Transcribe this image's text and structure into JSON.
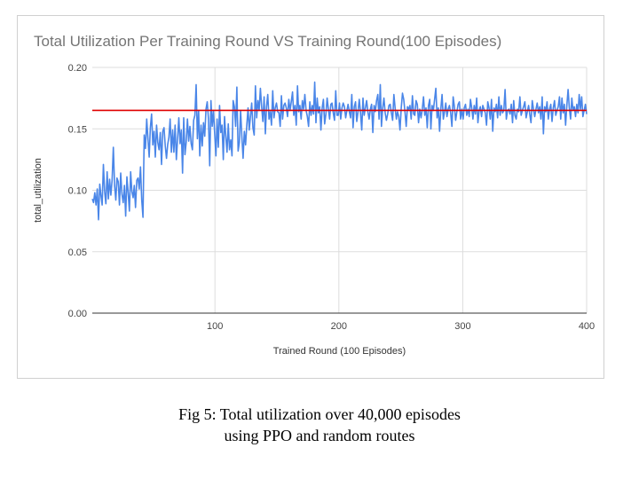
{
  "caption": {
    "line1": "Fig 5: Total utilization over 40,000 episodes",
    "line2": "using PPO and random routes"
  },
  "chart_data": {
    "type": "line",
    "title": "Total Utilization Per Training Round VS Training Round(100 Episodes)",
    "xlabel": "Trained Round (100 Episodes)",
    "ylabel": "total_utilization",
    "xlim": [
      1,
      400
    ],
    "ylim": [
      0,
      0.2
    ],
    "xticks": [
      100,
      200,
      300,
      400
    ],
    "yticks": [
      0.0,
      0.05,
      0.1,
      0.15,
      0.2
    ],
    "ytick_labels": [
      "0.00",
      "0.05",
      "0.10",
      "0.15",
      "0.20"
    ],
    "grid": true,
    "legend": "none",
    "colors": {
      "series": "#4a86e8",
      "reference": "#e00000",
      "grid": "#dddddd",
      "axis": "#333333"
    },
    "series": [
      {
        "values": [
          0.093,
          0.09,
          0.098,
          0.088,
          0.101,
          0.076,
          0.105,
          0.096,
          0.088,
          0.121,
          0.099,
          0.089,
          0.115,
          0.093,
          0.109,
          0.096,
          0.108,
          0.135,
          0.104,
          0.092,
          0.11,
          0.107,
          0.088,
          0.114,
          0.097,
          0.09,
          0.104,
          0.079,
          0.111,
          0.098,
          0.083,
          0.115,
          0.099,
          0.094,
          0.104,
          0.086,
          0.108,
          0.11,
          0.101,
          0.119,
          0.092,
          0.078,
          0.145,
          0.134,
          0.158,
          0.142,
          0.127,
          0.151,
          0.162,
          0.137,
          0.148,
          0.127,
          0.153,
          0.139,
          0.133,
          0.147,
          0.121,
          0.148,
          0.151,
          0.136,
          0.126,
          0.137,
          0.143,
          0.158,
          0.131,
          0.149,
          0.131,
          0.153,
          0.125,
          0.142,
          0.159,
          0.138,
          0.149,
          0.114,
          0.159,
          0.129,
          0.139,
          0.158,
          0.14,
          0.152,
          0.138,
          0.133,
          0.157,
          0.161,
          0.186,
          0.142,
          0.165,
          0.128,
          0.153,
          0.136,
          0.155,
          0.144,
          0.166,
          0.172,
          0.158,
          0.12,
          0.173,
          0.152,
          0.165,
          0.146,
          0.128,
          0.158,
          0.135,
          0.169,
          0.147,
          0.153,
          0.125,
          0.16,
          0.144,
          0.131,
          0.154,
          0.133,
          0.141,
          0.128,
          0.173,
          0.168,
          0.152,
          0.184,
          0.132,
          0.139,
          0.165,
          0.144,
          0.126,
          0.148,
          0.137,
          0.153,
          0.167,
          0.149,
          0.16,
          0.171,
          0.151,
          0.145,
          0.185,
          0.159,
          0.173,
          0.165,
          0.183,
          0.168,
          0.156,
          0.176,
          0.146,
          0.168,
          0.178,
          0.158,
          0.164,
          0.153,
          0.181,
          0.159,
          0.167,
          0.171,
          0.164,
          0.163,
          0.152,
          0.177,
          0.158,
          0.169,
          0.171,
          0.167,
          0.16,
          0.174,
          0.165,
          0.172,
          0.18,
          0.161,
          0.169,
          0.153,
          0.185,
          0.164,
          0.169,
          0.158,
          0.173,
          0.166,
          0.178,
          0.165,
          0.16,
          0.152,
          0.172,
          0.161,
          0.169,
          0.162,
          0.188,
          0.155,
          0.175,
          0.163,
          0.168,
          0.149,
          0.167,
          0.174,
          0.154,
          0.162,
          0.175,
          0.166,
          0.158,
          0.17,
          0.171,
          0.163,
          0.157,
          0.181,
          0.161,
          0.161,
          0.171,
          0.158,
          0.167,
          0.171,
          0.168,
          0.159,
          0.165,
          0.17,
          0.164,
          0.159,
          0.178,
          0.151,
          0.168,
          0.172,
          0.156,
          0.164,
          0.174,
          0.163,
          0.149,
          0.175,
          0.161,
          0.167,
          0.173,
          0.164,
          0.158,
          0.166,
          0.17,
          0.147,
          0.169,
          0.164,
          0.173,
          0.178,
          0.158,
          0.186,
          0.152,
          0.167,
          0.175,
          0.163,
          0.157,
          0.162,
          0.169,
          0.17,
          0.163,
          0.157,
          0.178,
          0.167,
          0.158,
          0.164,
          0.16,
          0.149,
          0.167,
          0.179,
          0.174,
          0.164,
          0.152,
          0.168,
          0.166,
          0.169,
          0.158,
          0.177,
          0.162,
          0.161,
          0.173,
          0.17,
          0.155,
          0.166,
          0.159,
          0.166,
          0.176,
          0.161,
          0.167,
          0.151,
          0.169,
          0.174,
          0.15,
          0.169,
          0.165,
          0.174,
          0.183,
          0.159,
          0.167,
          0.148,
          0.166,
          0.178,
          0.158,
          0.164,
          0.171,
          0.16,
          0.166,
          0.169,
          0.163,
          0.152,
          0.176,
          0.168,
          0.157,
          0.164,
          0.17,
          0.172,
          0.158,
          0.166,
          0.158,
          0.167,
          0.17,
          0.161,
          0.166,
          0.16,
          0.174,
          0.167,
          0.158,
          0.169,
          0.162,
          0.175,
          0.155,
          0.165,
          0.168,
          0.16,
          0.169,
          0.166,
          0.163,
          0.153,
          0.172,
          0.167,
          0.158,
          0.174,
          0.148,
          0.167,
          0.164,
          0.17,
          0.159,
          0.176,
          0.161,
          0.169,
          0.163,
          0.165,
          0.182,
          0.158,
          0.165,
          0.166,
          0.162,
          0.17,
          0.155,
          0.173,
          0.161,
          0.158,
          0.166,
          0.164,
          0.176,
          0.161,
          0.165,
          0.168,
          0.172,
          0.159,
          0.164,
          0.169,
          0.162,
          0.155,
          0.173,
          0.166,
          0.16,
          0.166,
          0.171,
          0.163,
          0.168,
          0.158,
          0.176,
          0.146,
          0.168,
          0.164,
          0.172,
          0.158,
          0.166,
          0.17,
          0.156,
          0.167,
          0.173,
          0.161,
          0.165,
          0.168,
          0.176,
          0.158,
          0.175,
          0.163,
          0.17,
          0.153,
          0.169,
          0.182,
          0.167,
          0.158,
          0.175,
          0.165,
          0.168,
          0.16,
          0.17,
          0.163,
          0.178,
          0.166,
          0.176,
          0.16,
          0.165,
          0.17,
          0.162
        ]
      }
    ],
    "reference_line": {
      "y": 0.165
    }
  }
}
